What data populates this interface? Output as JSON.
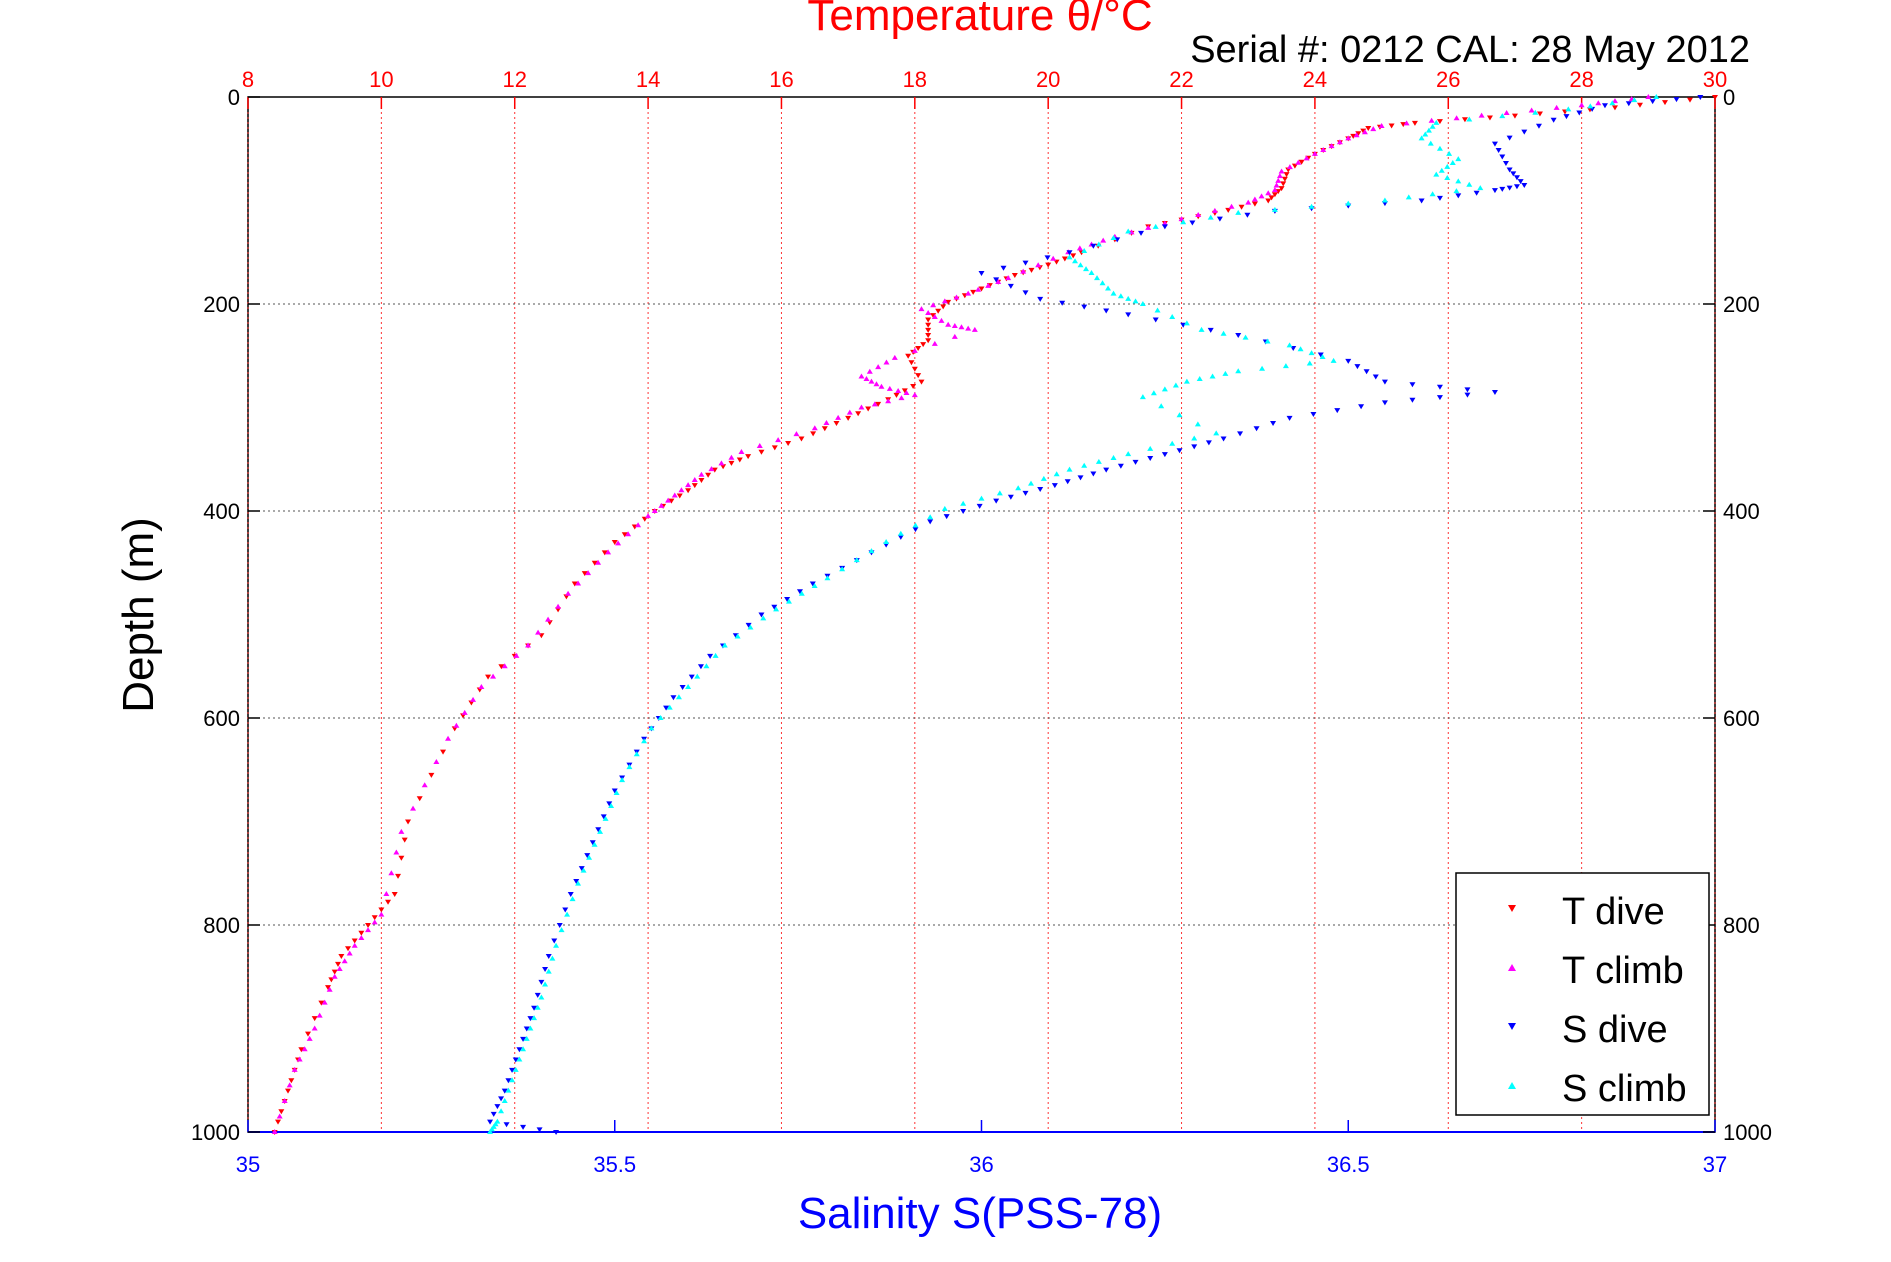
{
  "chart_data": {
    "type": "scatter",
    "top_axis_title": "Temperature θ/°C",
    "annotation": "Serial #: 0212  CAL: 28 May 2012",
    "ylabel": "Depth (m)",
    "xlabel": "Salinity S(PSS-78)",
    "temperature_axis": {
      "range": [
        8,
        30
      ],
      "ticks": [
        "8",
        "10",
        "12",
        "14",
        "16",
        "18",
        "20",
        "22",
        "24",
        "26",
        "28",
        "30"
      ],
      "color": "#ff0000"
    },
    "salinity_axis": {
      "range": [
        35,
        37
      ],
      "ticks": [
        "35",
        "35.5",
        "36",
        "36.5",
        "37"
      ],
      "color": "#0000ff"
    },
    "depth_axis": {
      "range": [
        0,
        1000
      ],
      "reversed": true,
      "ticks": [
        "0",
        "200",
        "400",
        "600",
        "800",
        "1000"
      ]
    },
    "grid": true,
    "legend_position": "bottom-right",
    "series": [
      {
        "name": "T dive",
        "axis": "temperature",
        "color": "#ff0000",
        "marker": "triangle-down",
        "points": [
          [
            30,
            0
          ],
          [
            28.5,
            10
          ],
          [
            27,
            18
          ],
          [
            25.5,
            25
          ],
          [
            24.8,
            30
          ],
          [
            24.5,
            40
          ],
          [
            24.0,
            55
          ],
          [
            23.6,
            70
          ],
          [
            23.5,
            88
          ],
          [
            23.3,
            100
          ],
          [
            22.5,
            112
          ],
          [
            21.5,
            125
          ],
          [
            20.5,
            150
          ],
          [
            20.0,
            162
          ],
          [
            19.5,
            172
          ],
          [
            19.0,
            185
          ],
          [
            18.5,
            198
          ],
          [
            18.2,
            215
          ],
          [
            18.2,
            235
          ],
          [
            17.9,
            250
          ],
          [
            18.1,
            275
          ],
          [
            17.6,
            292
          ],
          [
            17.0,
            310
          ],
          [
            16.3,
            330
          ],
          [
            15.5,
            347
          ],
          [
            15.0,
            360
          ],
          [
            14.6,
            380
          ],
          [
            14.1,
            400
          ],
          [
            13.5,
            430
          ],
          [
            12.9,
            470
          ],
          [
            12.4,
            520
          ],
          [
            11.6,
            560
          ],
          [
            11.1,
            610
          ],
          [
            10.4,
            700
          ],
          [
            10.2,
            770
          ],
          [
            9.8,
            800
          ],
          [
            9.4,
            830
          ],
          [
            9.2,
            860
          ],
          [
            8.8,
            920
          ],
          [
            8.6,
            960
          ],
          [
            8.4,
            1000
          ]
        ]
      },
      {
        "name": "T climb",
        "axis": "temperature",
        "color": "#ff00ff",
        "marker": "triangle-up",
        "points": [
          [
            29,
            0
          ],
          [
            28,
            8
          ],
          [
            26.5,
            18
          ],
          [
            25,
            28
          ],
          [
            24.5,
            40
          ],
          [
            24.0,
            55
          ],
          [
            23.5,
            72
          ],
          [
            23.4,
            90
          ],
          [
            23.0,
            102
          ],
          [
            22.0,
            118
          ],
          [
            21.0,
            135
          ],
          [
            20.3,
            150
          ],
          [
            19.4,
            175
          ],
          [
            18.8,
            190
          ],
          [
            18.1,
            205
          ],
          [
            18.5,
            220
          ],
          [
            18.9,
            225
          ],
          [
            17.7,
            252
          ],
          [
            17.2,
            270
          ],
          [
            17.5,
            280
          ],
          [
            18.0,
            288
          ],
          [
            17.2,
            300
          ],
          [
            16.5,
            320
          ],
          [
            15.4,
            343
          ],
          [
            14.8,
            365
          ],
          [
            14.4,
            385
          ],
          [
            14.0,
            405
          ],
          [
            13.4,
            440
          ],
          [
            12.8,
            480
          ],
          [
            12.2,
            530
          ],
          [
            11.5,
            570
          ],
          [
            11.0,
            620
          ],
          [
            10.3,
            710
          ],
          [
            10.0,
            790
          ],
          [
            9.6,
            820
          ],
          [
            9.3,
            850
          ],
          [
            9.0,
            900
          ],
          [
            8.7,
            940
          ],
          [
            8.4,
            1000
          ]
        ]
      },
      {
        "name": "S dive",
        "axis": "salinity",
        "color": "#0000ff",
        "marker": "triangle-down",
        "points": [
          [
            36.98,
            0
          ],
          [
            36.85,
            8
          ],
          [
            36.78,
            22
          ],
          [
            36.7,
            45
          ],
          [
            36.72,
            70
          ],
          [
            36.74,
            85
          ],
          [
            36.7,
            90
          ],
          [
            36.6,
            100
          ],
          [
            36.4,
            110
          ],
          [
            36.25,
            125
          ],
          [
            36.12,
            150
          ],
          [
            36.0,
            170
          ],
          [
            36.08,
            195
          ],
          [
            36.2,
            210
          ],
          [
            36.35,
            230
          ],
          [
            36.5,
            255
          ],
          [
            36.55,
            275
          ],
          [
            36.7,
            285
          ],
          [
            36.55,
            295
          ],
          [
            36.42,
            310
          ],
          [
            36.33,
            330
          ],
          [
            36.25,
            345
          ],
          [
            36.17,
            360
          ],
          [
            36.1,
            375
          ],
          [
            36.02,
            390
          ],
          [
            35.93,
            410
          ],
          [
            35.85,
            440
          ],
          [
            35.77,
            470
          ],
          [
            35.7,
            500
          ],
          [
            35.63,
            540
          ],
          [
            35.58,
            580
          ],
          [
            35.54,
            620
          ],
          [
            35.5,
            670
          ],
          [
            35.47,
            720
          ],
          [
            35.44,
            770
          ],
          [
            35.41,
            830
          ],
          [
            35.39,
            880
          ],
          [
            35.37,
            920
          ],
          [
            35.35,
            960
          ],
          [
            35.33,
            990
          ],
          [
            35.42,
            1000
          ]
        ]
      },
      {
        "name": "S climb",
        "axis": "salinity",
        "color": "#00ffff",
        "marker": "triangle-up",
        "points": [
          [
            36.92,
            0
          ],
          [
            36.8,
            12
          ],
          [
            36.62,
            25
          ],
          [
            36.6,
            40
          ],
          [
            36.65,
            60
          ],
          [
            36.62,
            75
          ],
          [
            36.68,
            88
          ],
          [
            36.55,
            100
          ],
          [
            36.35,
            112
          ],
          [
            36.2,
            130
          ],
          [
            36.12,
            155
          ],
          [
            36.15,
            170
          ],
          [
            36.18,
            190
          ],
          [
            36.22,
            200
          ],
          [
            36.3,
            225
          ],
          [
            36.42,
            240
          ],
          [
            36.48,
            255
          ],
          [
            36.35,
            265
          ],
          [
            36.28,
            275
          ],
          [
            36.22,
            290
          ],
          [
            36.32,
            325
          ],
          [
            36.2,
            345
          ],
          [
            36.12,
            360
          ],
          [
            36.05,
            378
          ],
          [
            35.95,
            398
          ],
          [
            35.87,
            430
          ],
          [
            35.79,
            465
          ],
          [
            35.72,
            495
          ],
          [
            35.65,
            530
          ],
          [
            35.6,
            570
          ],
          [
            35.55,
            610
          ],
          [
            35.51,
            660
          ],
          [
            35.48,
            710
          ],
          [
            35.45,
            760
          ],
          [
            35.42,
            820
          ],
          [
            35.4,
            870
          ],
          [
            35.38,
            910
          ],
          [
            35.36,
            950
          ],
          [
            35.34,
            990
          ],
          [
            35.33,
            1000
          ]
        ]
      }
    ]
  }
}
